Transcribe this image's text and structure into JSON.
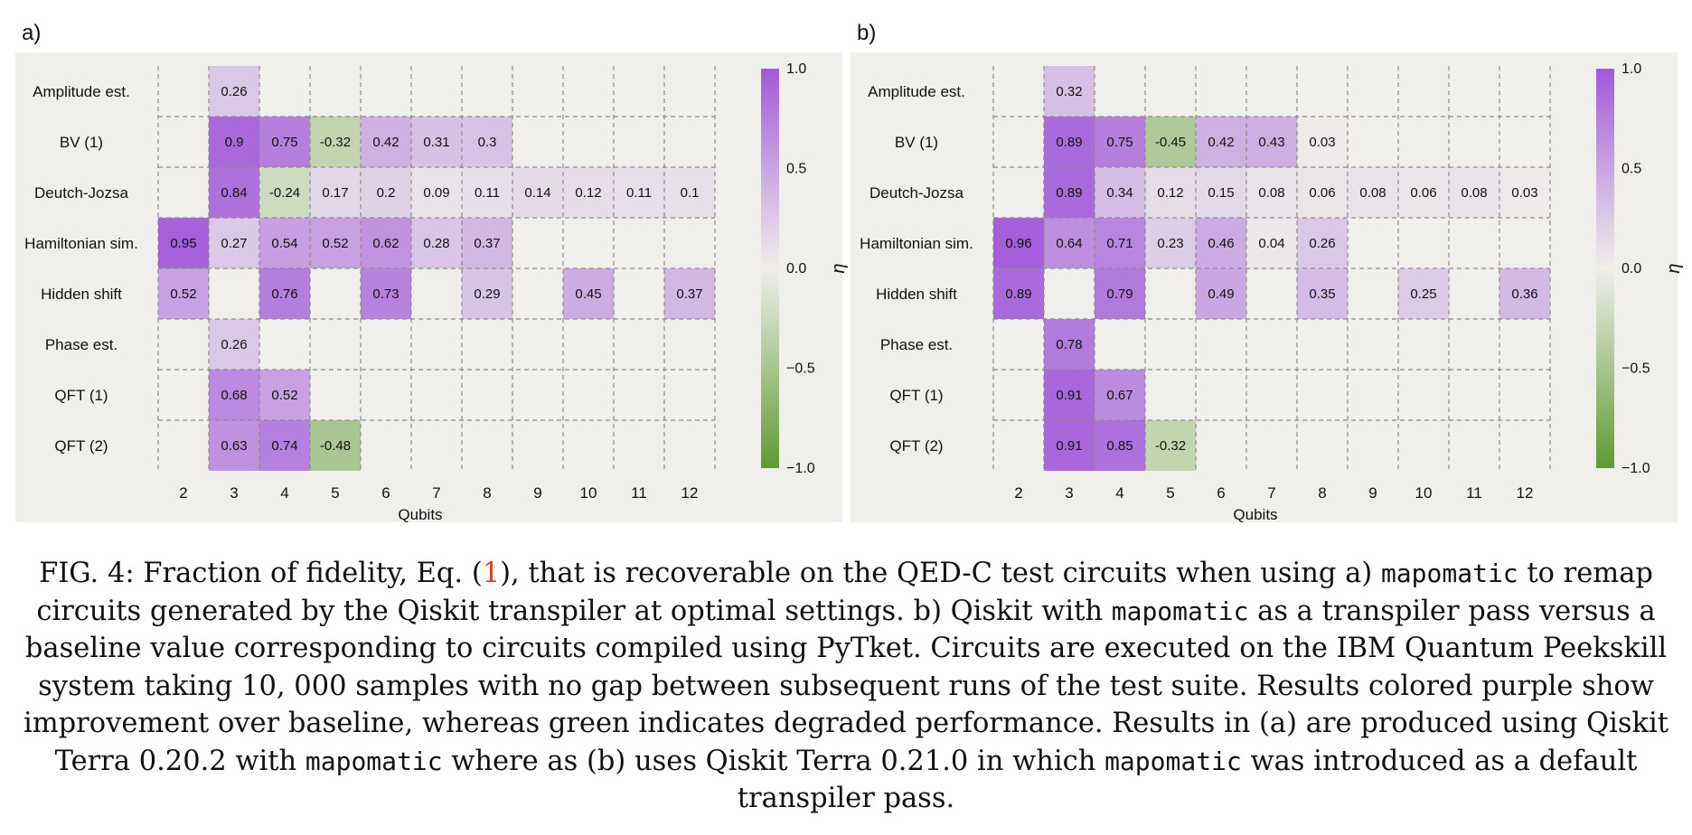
{
  "chart_data": [
    {
      "type": "heatmap",
      "panel_label": "a)",
      "xlabel": "Qubits",
      "ylabel": "",
      "colorbar_label": "η",
      "colorbar_ticks": [
        "1.0",
        "0.5",
        "0.0",
        "−0.5",
        "−1.0"
      ],
      "vmin": -1.0,
      "vmax": 1.0,
      "x": [
        "2",
        "3",
        "4",
        "5",
        "6",
        "7",
        "8",
        "9",
        "10",
        "11",
        "12"
      ],
      "y": [
        "Amplitude est.",
        "BV (1)",
        "Deutch-Jozsa",
        "Hamiltonian sim.",
        "Hidden shift",
        "Phase est.",
        "QFT (1)",
        "QFT (2)"
      ],
      "z": [
        [
          null,
          0.26,
          null,
          null,
          null,
          null,
          null,
          null,
          null,
          null,
          null
        ],
        [
          null,
          0.9,
          0.75,
          -0.32,
          0.42,
          0.31,
          0.3,
          null,
          null,
          null,
          null
        ],
        [
          null,
          0.84,
          -0.24,
          0.17,
          0.2,
          0.09,
          0.11,
          0.14,
          0.12,
          0.11,
          0.1
        ],
        [
          0.95,
          0.27,
          0.54,
          0.52,
          0.62,
          0.28,
          0.37,
          null,
          null,
          null,
          null
        ],
        [
          0.52,
          null,
          0.76,
          null,
          0.73,
          null,
          0.29,
          null,
          0.45,
          null,
          0.37
        ],
        [
          null,
          0.26,
          null,
          null,
          null,
          null,
          null,
          null,
          null,
          null,
          null
        ],
        [
          null,
          0.68,
          0.52,
          null,
          null,
          null,
          null,
          null,
          null,
          null,
          null
        ],
        [
          null,
          0.63,
          0.74,
          -0.48,
          null,
          null,
          null,
          null,
          null,
          null,
          null
        ]
      ]
    },
    {
      "type": "heatmap",
      "panel_label": "b)",
      "xlabel": "Qubits",
      "ylabel": "",
      "colorbar_label": "η",
      "colorbar_ticks": [
        "1.0",
        "0.5",
        "0.0",
        "−0.5",
        "−1.0"
      ],
      "vmin": -1.0,
      "vmax": 1.0,
      "x": [
        "2",
        "3",
        "4",
        "5",
        "6",
        "7",
        "8",
        "9",
        "10",
        "11",
        "12"
      ],
      "y": [
        "Amplitude est.",
        "BV (1)",
        "Deutch-Jozsa",
        "Hamiltonian sim.",
        "Hidden shift",
        "Phase est.",
        "QFT (1)",
        "QFT (2)"
      ],
      "z": [
        [
          null,
          0.32,
          null,
          null,
          null,
          null,
          null,
          null,
          null,
          null,
          null
        ],
        [
          null,
          0.89,
          0.75,
          -0.45,
          0.42,
          0.43,
          0.03,
          null,
          null,
          null,
          null
        ],
        [
          null,
          0.89,
          0.34,
          0.12,
          0.15,
          0.08,
          0.06,
          0.08,
          0.06,
          0.08,
          0.03
        ],
        [
          0.96,
          0.64,
          0.71,
          0.23,
          0.46,
          0.04,
          0.26,
          null,
          null,
          null,
          null
        ],
        [
          0.89,
          null,
          0.79,
          null,
          0.49,
          null,
          0.35,
          null,
          0.25,
          null,
          0.36
        ],
        [
          null,
          0.78,
          null,
          null,
          null,
          null,
          null,
          null,
          null,
          null,
          null
        ],
        [
          null,
          0.91,
          0.67,
          null,
          null,
          null,
          null,
          null,
          null,
          null,
          null
        ],
        [
          null,
          0.91,
          0.85,
          -0.32,
          null,
          null,
          null,
          null,
          null,
          null,
          null
        ]
      ]
    }
  ],
  "colors": {
    "panel_bg": "#f0efeb",
    "positive": "#a259d9",
    "neutral": "#f0efeb",
    "negative": "#5f9a32",
    "grid": "#8a8a8a",
    "caption_ref": "#e0401a"
  },
  "caption": {
    "fig": "FIG. 4:",
    "t1": "Fraction of fidelity, Eq. (",
    "ref": "1",
    "t2": "), that is recoverable on the QED-C test circuits when using a)",
    "m1": "mapomatic",
    "t3": "to remap circuits generated by the Qiskit transpiler at optimal settings. b) Qiskit with",
    "m2": "mapomatic",
    "t4": "as a transpiler pass versus a baseline value corresponding to circuits compiled using PyTket. Circuits are executed on the IBM Quantum Peekskill system taking 10, 000 samples with no gap between subsequent runs of the test suite. Results colored purple show improvement over baseline, whereas green indicates degraded performance. Results in (a) are produced using Qiskit Terra 0.20.2 with",
    "m3": "mapomatic",
    "t5": "where as (b) uses Qiskit Terra 0.21.0 in which",
    "m4": "mapomatic",
    "t6": "was introduced as a default transpiler pass."
  }
}
